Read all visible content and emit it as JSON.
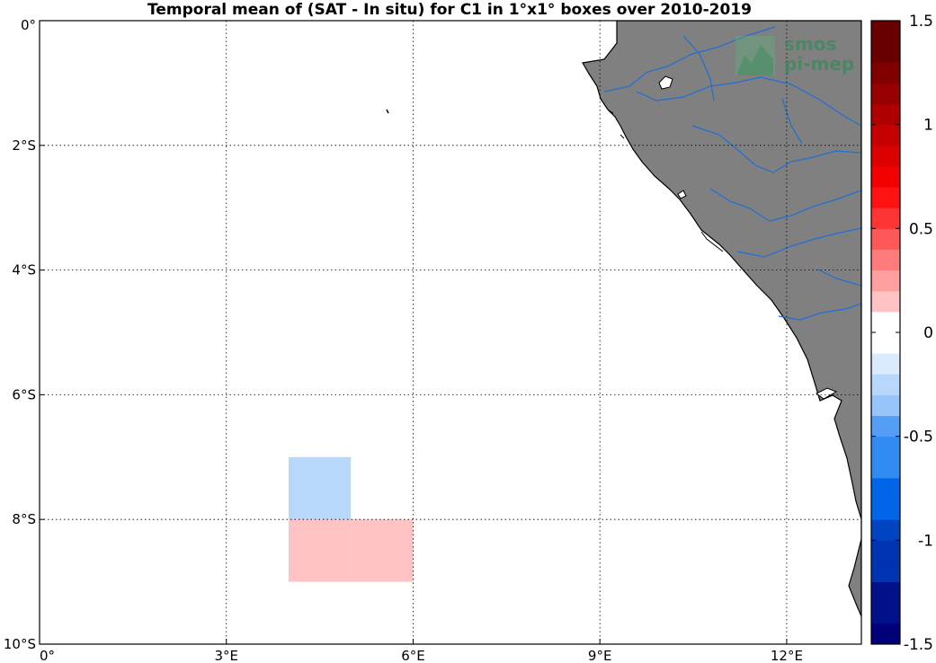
{
  "title": "Temporal mean of (SAT - In situ) for C1 in 1°x1° boxes over 2010-2019",
  "logo": {
    "line1": "smos",
    "line2": "pi-mep"
  },
  "axes": {
    "lon_range": [
      0,
      13.2
    ],
    "lat_range": [
      0,
      -10
    ],
    "x_ticks": [
      {
        "value": 0,
        "label": "0°"
      },
      {
        "value": 3,
        "label": "3°E"
      },
      {
        "value": 6,
        "label": "6°E"
      },
      {
        "value": 9,
        "label": "9°E"
      },
      {
        "value": 12,
        "label": "12°E"
      }
    ],
    "y_ticks": [
      {
        "value": 0,
        "label": "0°"
      },
      {
        "value": -2,
        "label": "2°S"
      },
      {
        "value": -4,
        "label": "4°S"
      },
      {
        "value": -6,
        "label": "6°S"
      },
      {
        "value": -8,
        "label": "8°S"
      },
      {
        "value": -10,
        "label": "10°S"
      }
    ],
    "grid": "dotted"
  },
  "chart_data": {
    "type": "heatmap",
    "x_unit": "degrees east longitude",
    "y_unit": "degrees latitude (negative = south)",
    "boxes": [
      {
        "lon": 1,
        "lat": -4,
        "value": -0.05
      },
      {
        "lon": 2,
        "lat": -6,
        "value": -0.05
      },
      {
        "lon": 3,
        "lat": -6,
        "value": -0.05
      },
      {
        "lon": 3,
        "lat": -7,
        "value": -0.05
      },
      {
        "lon": 4,
        "lat": -7,
        "value": -0.2
      },
      {
        "lon": 4,
        "lat": -8,
        "value": 0.25
      },
      {
        "lon": 5,
        "lat": -8,
        "value": 0.25
      },
      {
        "lon": 0,
        "lat": -8,
        "value": -0.05
      }
    ],
    "colorbar": {
      "range": [
        -1.5,
        1.5
      ],
      "step": 0.1,
      "ticks": [
        {
          "value": 1.5,
          "label": "1.5"
        },
        {
          "value": 1,
          "label": "1"
        },
        {
          "value": 0.5,
          "label": "0.5"
        },
        {
          "value": 0,
          "label": "0"
        },
        {
          "value": -0.5,
          "label": "-0.5"
        },
        {
          "value": -1,
          "label": "-1"
        },
        {
          "value": -1.5,
          "label": "-1.5"
        }
      ]
    }
  },
  "colors": {
    "land": "#808080",
    "river": "#1f6fd6",
    "coast": "#000000",
    "ocean": "#ffffff"
  }
}
